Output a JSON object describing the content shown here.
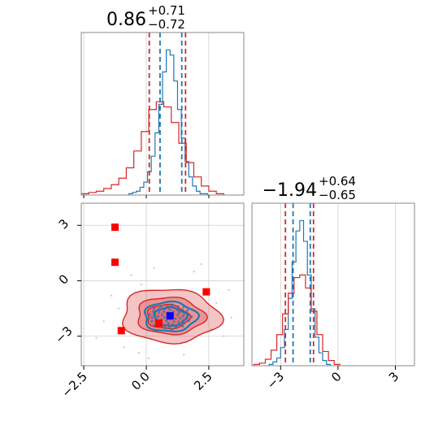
{
  "chart_data": [
    {
      "type": "histogram",
      "panel": "top-left",
      "title": {
        "median": "0.86",
        "plus": "+0.71",
        "minus": "−0.72"
      },
      "xlim": [
        -2.6,
        3.9
      ],
      "grid": true,
      "series": [
        {
          "color": "#1f77b4",
          "bin_edges": [
            -0.7,
            -0.55,
            -0.4,
            -0.25,
            -0.1,
            0.05,
            0.2,
            0.35,
            0.5,
            0.65,
            0.8,
            0.95,
            1.1,
            1.25,
            1.4,
            1.55,
            1.7,
            1.85,
            2.0,
            2.15,
            2.3,
            2.45
          ],
          "counts": [
            1,
            2,
            3,
            6,
            10,
            18,
            30,
            48,
            70,
            95,
            112,
            108,
            88,
            66,
            44,
            26,
            14,
            7,
            3,
            1,
            1
          ],
          "quantiles": [
            0.55,
            1.42
          ]
        },
        {
          "color": "#d62728",
          "bin_edges": [
            -2.6,
            -2.3,
            -2.0,
            -1.7,
            -1.4,
            -1.1,
            -0.8,
            -0.5,
            -0.2,
            0.1,
            0.4,
            0.7,
            1.0,
            1.3,
            1.6,
            1.9,
            2.2,
            2.5,
            2.8,
            3.1
          ],
          "counts": [
            1,
            2,
            3,
            5,
            8,
            13,
            21,
            34,
            49,
            66,
            72,
            68,
            56,
            40,
            25,
            14,
            7,
            3,
            1
          ],
          "quantiles": [
            0.12,
            1.57
          ]
        }
      ]
    },
    {
      "type": "histogram",
      "panel": "bottom-right",
      "title": {
        "median": "−1.94",
        "plus": "+0.64",
        "minus": "−0.65"
      },
      "xlim": [
        -4.5,
        4.0
      ],
      "xticks": [
        -3,
        0,
        3
      ],
      "xtick_labels": [
        "−3",
        "0",
        "3"
      ],
      "grid": true,
      "series": [
        {
          "color": "#1f77b4",
          "bin_edges": [
            -3.6,
            -3.4,
            -3.2,
            -3.0,
            -2.8,
            -2.6,
            -2.4,
            -2.2,
            -2.0,
            -1.8,
            -1.6,
            -1.4,
            -1.2,
            -1.0,
            -0.8,
            -0.6,
            -0.4
          ],
          "counts": [
            1,
            3,
            6,
            14,
            28,
            52,
            80,
            104,
            112,
            96,
            70,
            44,
            22,
            10,
            4,
            1
          ],
          "quantiles": [
            -2.35,
            -1.45
          ]
        },
        {
          "color": "#d62728",
          "bin_edges": [
            -4.4,
            -4.1,
            -3.8,
            -3.5,
            -3.2,
            -2.9,
            -2.6,
            -2.3,
            -2.0,
            -1.7,
            -1.4,
            -1.1,
            -0.8,
            -0.5,
            -0.2,
            0.1
          ],
          "counts": [
            1,
            2,
            5,
            12,
            24,
            40,
            56,
            68,
            70,
            60,
            42,
            24,
            11,
            4,
            1
          ],
          "quantiles": [
            -2.75,
            -1.28
          ]
        }
      ]
    },
    {
      "type": "scatter",
      "panel": "bottom-left",
      "xlim": [
        -2.6,
        3.9
      ],
      "ylim": [
        -4.6,
        4.2
      ],
      "xticks": [
        -2.5,
        0.0,
        2.5
      ],
      "xtick_labels": [
        "−2.5",
        "0.0",
        "2.5"
      ],
      "yticks": [
        -3,
        0,
        3
      ],
      "ytick_labels": [
        "−3",
        "0",
        "3"
      ],
      "grid": true,
      "contours_red": [
        {
          "cx": 0.95,
          "cy": -1.9,
          "rx": 1.95,
          "ry": 1.45,
          "rot": -5
        },
        {
          "cx": 0.95,
          "cy": -1.9,
          "rx": 1.35,
          "ry": 1.0,
          "rot": -5
        },
        {
          "cx": 0.85,
          "cy": -1.95,
          "rx": 0.85,
          "ry": 0.65,
          "rot": -5
        }
      ],
      "contours_blue": [
        {
          "cx": 0.95,
          "cy": -1.95,
          "rx": 1.05,
          "ry": 0.8,
          "rot": 0
        },
        {
          "cx": 0.95,
          "cy": -1.95,
          "rx": 0.65,
          "ry": 0.5,
          "rot": 0
        }
      ],
      "markers_red": [
        {
          "x": -1.25,
          "y": 2.9
        },
        {
          "x": -1.25,
          "y": 1.0
        },
        {
          "x": -1.0,
          "y": -2.7
        },
        {
          "x": 2.4,
          "y": -0.6
        },
        {
          "x": 0.5,
          "y": -2.3
        }
      ],
      "markers_blue": [
        {
          "x": 0.95,
          "y": -1.9
        }
      ],
      "background_points": [
        {
          "x": -0.6,
          "y": 0.3
        },
        {
          "x": -1.7,
          "y": -2.2
        },
        {
          "x": -0.9,
          "y": -3.6
        },
        {
          "x": 2.8,
          "y": -1.2
        },
        {
          "x": 3.1,
          "y": -3.0
        },
        {
          "x": -0.3,
          "y": -3.9
        },
        {
          "x": 1.9,
          "y": 0.5
        },
        {
          "x": 2.6,
          "y": -2.6
        },
        {
          "x": -1.4,
          "y": -0.8
        },
        {
          "x": 0.3,
          "y": 0.7
        },
        {
          "x": 3.3,
          "y": -0.5
        },
        {
          "x": -2.0,
          "y": -3.1
        },
        {
          "x": 1.5,
          "y": -4.0
        },
        {
          "x": -0.2,
          "y": -0.2
        },
        {
          "x": 2.2,
          "y": 0.9
        },
        {
          "x": -1.1,
          "y": -1.5
        },
        {
          "x": 3.4,
          "y": -2.0
        },
        {
          "x": 0.1,
          "y": -4.2
        }
      ]
    }
  ]
}
